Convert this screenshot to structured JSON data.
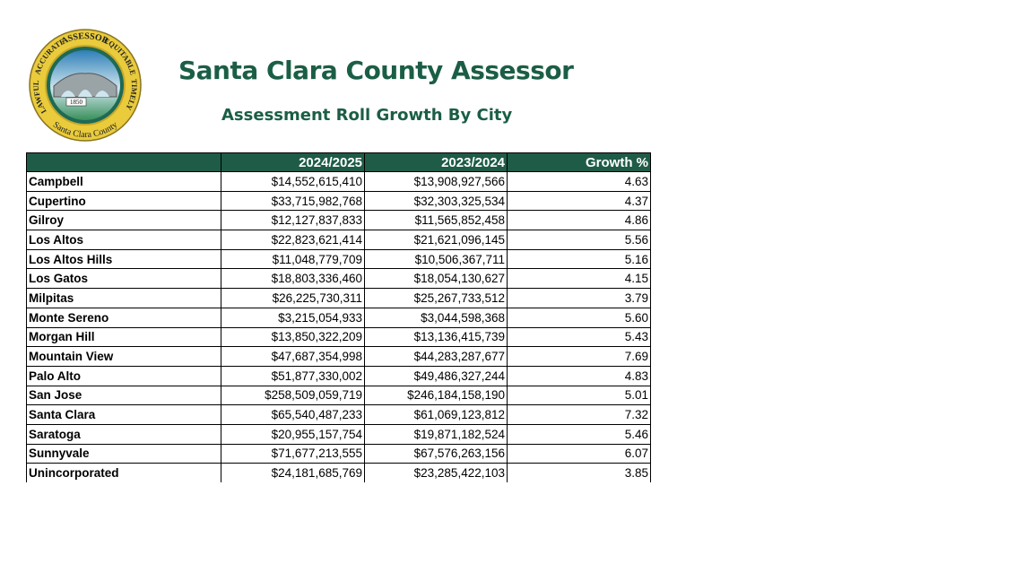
{
  "header": {
    "title": "Santa Clara County Assessor",
    "subtitle": "Assessment Roll Growth By City",
    "logo": {
      "top": "ASSESSOR",
      "upper_left": "ACCURATE",
      "upper_right": "EQUITABLE",
      "left": "LAWFUL",
      "right": "TIMELY",
      "bottom": "Santa Clara County",
      "year": "1850"
    }
  },
  "table": {
    "columns": [
      "",
      "2024/2025",
      "2023/2024",
      "Growth %"
    ],
    "rows": [
      [
        "Campbell",
        "$14,552,615,410",
        "$13,908,927,566",
        "4.63"
      ],
      [
        "Cupertino",
        "$33,715,982,768",
        "$32,303,325,534",
        "4.37"
      ],
      [
        "Gilroy",
        "$12,127,837,833",
        "$11,565,852,458",
        "4.86"
      ],
      [
        "Los Altos",
        "$22,823,621,414",
        "$21,621,096,145",
        "5.56"
      ],
      [
        "Los Altos Hills",
        "$11,048,779,709",
        "$10,506,367,711",
        "5.16"
      ],
      [
        "Los Gatos",
        "$18,803,336,460",
        "$18,054,130,627",
        "4.15"
      ],
      [
        "Milpitas",
        "$26,225,730,311",
        "$25,267,733,512",
        "3.79"
      ],
      [
        "Monte Sereno",
        "$3,215,054,933",
        "$3,044,598,368",
        "5.60"
      ],
      [
        "Morgan Hill",
        "$13,850,322,209",
        "$13,136,415,739",
        "5.43"
      ],
      [
        "Mountain View",
        "$47,687,354,998",
        "$44,283,287,677",
        "7.69"
      ],
      [
        "Palo Alto",
        "$51,877,330,002",
        "$49,486,327,244",
        "4.83"
      ],
      [
        "San Jose",
        "$258,509,059,719",
        "$246,184,158,190",
        "5.01"
      ],
      [
        "Santa Clara",
        "$65,540,487,233",
        "$61,069,123,812",
        "7.32"
      ],
      [
        "Saratoga",
        "$20,955,157,754",
        "$19,871,182,524",
        "5.46"
      ],
      [
        "Sunnyvale",
        "$71,677,213,555",
        "$67,576,263,156",
        "6.07"
      ],
      [
        "Unincorporated",
        "$24,181,685,769",
        "$23,285,422,103",
        "3.85"
      ]
    ]
  }
}
